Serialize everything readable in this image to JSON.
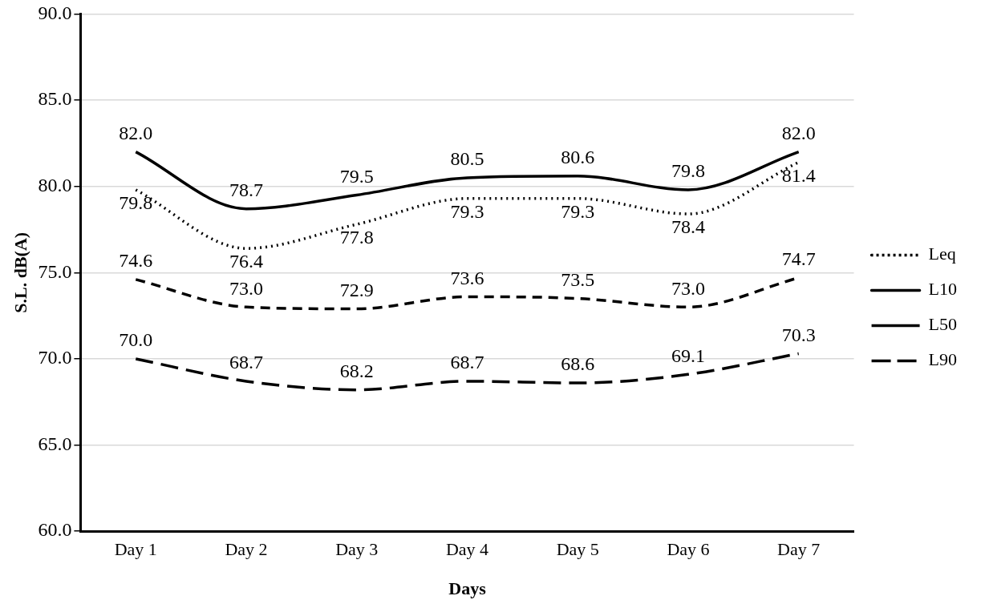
{
  "chart_data": {
    "type": "line",
    "xlabel": "Days",
    "ylabel": "S.L. dB(A)",
    "categories": [
      "Day 1",
      "Day 2",
      "Day 3",
      "Day 4",
      "Day 5",
      "Day 6",
      "Day 7"
    ],
    "series": [
      {
        "name": "Leq",
        "color": "#000000",
        "line_style": "dotted",
        "values": [
          79.8,
          76.4,
          77.8,
          79.3,
          79.3,
          78.4,
          81.4
        ],
        "value_labels": [
          "79.8",
          "76.4",
          "77.8",
          "79.3",
          "79.3",
          "78.4",
          "81.4"
        ]
      },
      {
        "name": "L10",
        "color": "#000000",
        "line_style": "solid",
        "values": [
          82.0,
          78.7,
          79.5,
          80.5,
          80.6,
          79.8,
          82.0
        ],
        "value_labels": [
          "82.0",
          "78.7",
          "79.5",
          "80.5",
          "80.6",
          "79.8",
          "82.0"
        ]
      },
      {
        "name": "L50",
        "color": "#000000",
        "line_style": "dashed",
        "values": [
          74.6,
          73.0,
          72.9,
          73.6,
          73.5,
          73.0,
          74.7
        ],
        "value_labels": [
          "74.6",
          "73.0",
          "72.9",
          "73.6",
          "73.5",
          "73.0",
          "74.7"
        ]
      },
      {
        "name": "L90",
        "color": "#000000",
        "line_style": "dashed",
        "values": [
          70.0,
          68.7,
          68.2,
          68.7,
          68.6,
          69.1,
          70.3
        ],
        "value_labels": [
          "70.0",
          "68.7",
          "68.2",
          "68.7",
          "68.6",
          "69.1",
          "70.3"
        ]
      }
    ],
    "ylim": [
      60,
      90
    ],
    "yticks": [
      {
        "value": 60,
        "label": "60.0"
      },
      {
        "value": 65,
        "label": "65.0"
      },
      {
        "value": 70,
        "label": "70.0"
      },
      {
        "value": 75,
        "label": "75.0"
      },
      {
        "value": 80,
        "label": "80.0"
      },
      {
        "value": 85,
        "label": "85.0"
      },
      {
        "value": 90,
        "label": "90.0"
      }
    ],
    "grid": "y",
    "legend": "right",
    "marker": "none"
  }
}
